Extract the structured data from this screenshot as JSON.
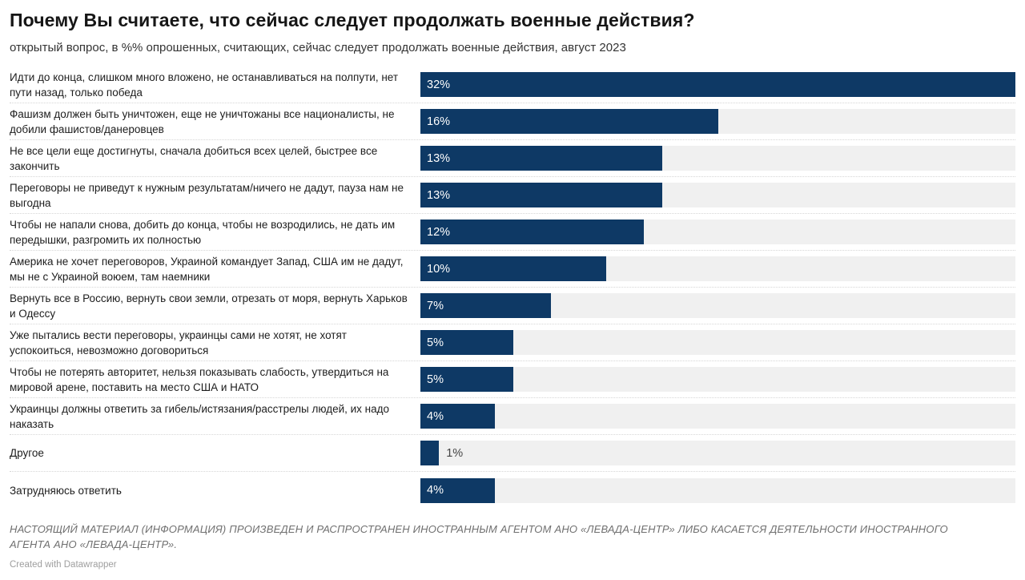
{
  "header": {
    "title": "Почему Вы считаете, что сейчас следует продолжать военные действия?",
    "subtitle": "открытый вопрос, в %% опрошенных, считающих, сейчас следует продолжать военные действия, август 2023"
  },
  "chart_data": {
    "type": "bar",
    "orientation": "horizontal",
    "title": "Почему Вы считаете, что сейчас следует продолжать военные действия?",
    "subtitle": "открытый вопрос, в %% опрошенных, считающих, сейчас следует продолжать военные действия, август 2023",
    "unit": "%",
    "xmax": 32,
    "grid": false,
    "legend": false,
    "bar_color": "#0e3965",
    "track_color": "#f0f0f0",
    "categories": [
      "Идти до конца, слишком много вложено, не останавливаться на полпути, нет пути назад, только победа",
      "Фашизм должен быть уничтожен, еще не уничтожаны все националисты, не добили фашистов/данеровцев",
      "Не все цели еще достигнуты, сначала добиться всех целей, быстрее все закончить",
      "Переговоры не приведут к нужным результатам/ничего не дадут, пауза нам не выгодна",
      "Чтобы не напали снова, добить до конца, чтобы не возродились, не дать им передышки, разгромить их полностью",
      "Америка не хочет переговоров, Украиной командует Запад, США им не дадут, мы не с Украиной воюем, там наемники",
      "Вернуть все в Россию, вернуть свои земли, отрезать от моря, вернуть Харьков и Одессу",
      "Уже пытались вести переговоры, украинцы сами не хотят, не хотят успокоиться, невозможно договориться",
      "Чтобы не потерять авторитет, нельзя показывать слабость, утвердиться на мировой арене, поставить на место США и НАТО",
      "Украинцы должны ответить за гибель/истязания/расстрелы людей, их надо наказать",
      "Другое",
      "Затрудняюсь ответить"
    ],
    "values": [
      32,
      16,
      13,
      13,
      12,
      10,
      7,
      5,
      5,
      4,
      1,
      4
    ],
    "value_labels": [
      "32%",
      "16%",
      "13%",
      "13%",
      "12%",
      "10%",
      "7%",
      "5%",
      "5%",
      "4%",
      "1%",
      "4%"
    ]
  },
  "footer": {
    "disclaimer": "НАСТОЯЩИЙ МАТЕРИАЛ (ИНФОРМАЦИЯ) ПРОИЗВЕДЕН И РАСПРОСТРАНЕН ИНОСТРАННЫМ АГЕНТОМ АНО «ЛЕВАДА-ЦЕНТР» ЛИБО КАСАЕТСЯ ДЕЯТЕЛЬНОСТИ ИНОСТРАННОГО АГЕНТА АНО «ЛЕВАДА-ЦЕНТР».",
    "credit": "Created with Datawrapper"
  }
}
